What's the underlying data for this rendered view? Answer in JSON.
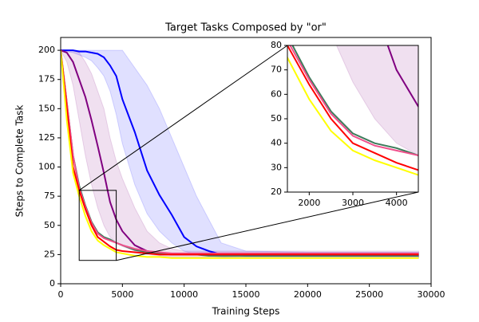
{
  "chart_data": {
    "type": "line",
    "title": "Target Tasks Composed by \"or\"",
    "x_label": "Training Steps",
    "y_label": "Steps to Complete Task",
    "x": [
      0,
      500,
      1000,
      1500,
      2000,
      2500,
      3000,
      3500,
      4000,
      4500,
      5000,
      6000,
      7000,
      8000,
      9000,
      10000,
      11000,
      12000,
      13000,
      15000,
      20000,
      25000,
      29000
    ],
    "xlim": [
      0,
      30000
    ],
    "xticks": [
      0,
      5000,
      10000,
      15000,
      20000,
      25000,
      30000
    ],
    "ylim": [
      0,
      211
    ],
    "yticks": [
      0,
      25,
      50,
      75,
      100,
      125,
      150,
      175,
      200
    ],
    "series": [
      {
        "color": "#0000ff",
        "values": [
          200,
          200,
          200,
          199,
          199,
          198,
          197,
          194,
          187,
          178,
          158,
          130,
          97,
          76,
          59,
          40,
          32,
          28,
          25,
          24,
          24,
          24,
          24
        ],
        "lower": [
          200,
          199,
          198,
          196,
          194,
          191,
          185,
          178,
          165,
          145,
          120,
          85,
          60,
          45,
          35,
          28,
          25,
          24,
          23,
          22,
          22,
          22,
          22
        ],
        "upper": [
          200,
          200,
          200,
          200,
          200,
          200,
          200,
          200,
          200,
          200,
          200,
          185,
          170,
          150,
          125,
          100,
          75,
          55,
          35,
          28,
          27,
          27,
          27
        ]
      },
      {
        "color": "#800080",
        "values": [
          200,
          198,
          190,
          175,
          160,
          140,
          118,
          95,
          70,
          55,
          45,
          33,
          28,
          26,
          25,
          25,
          25,
          25,
          25,
          25,
          25,
          25,
          25
        ],
        "lower": [
          200,
          190,
          170,
          140,
          110,
          85,
          65,
          50,
          40,
          35,
          32,
          28,
          25,
          24,
          23,
          23,
          23,
          23,
          23,
          23,
          23,
          23,
          23
        ],
        "upper": [
          200,
          200,
          200,
          198,
          190,
          180,
          165,
          150,
          125,
          105,
          90,
          65,
          45,
          35,
          30,
          28,
          28,
          28,
          28,
          28,
          28,
          28,
          28
        ]
      },
      {
        "color": "#3c7a5a",
        "values": [
          200,
          155,
          110,
          84,
          67,
          53,
          44,
          40,
          38,
          35,
          33,
          29,
          27,
          26,
          25,
          25,
          25,
          24,
          24,
          24,
          24,
          24,
          24
        ]
      },
      {
        "color": "#f0508c",
        "values": [
          200,
          155,
          110,
          82,
          66,
          52,
          43,
          39,
          37,
          35,
          33,
          30,
          28,
          27,
          26,
          26,
          26,
          26,
          26,
          26,
          26,
          26,
          26
        ]
      },
      {
        "color": "#ff0000",
        "values": [
          200,
          150,
          100,
          80,
          64,
          50,
          40,
          36,
          32,
          29,
          28,
          27,
          26,
          25,
          25,
          25,
          25,
          25,
          25,
          25,
          25,
          25,
          25
        ]
      },
      {
        "color": "#ffff00",
        "values": [
          200,
          140,
          95,
          75,
          58,
          45,
          37,
          33,
          30,
          27,
          26,
          24,
          23,
          23,
          22,
          22,
          22,
          22,
          22,
          22,
          22,
          22,
          22
        ]
      }
    ],
    "inset": {
      "xlim": [
        1500,
        4500
      ],
      "xticks": [
        2000,
        3000,
        4000
      ],
      "ylim": [
        20,
        80
      ],
      "yticks": [
        20,
        30,
        40,
        50,
        60,
        70,
        80
      ]
    }
  }
}
